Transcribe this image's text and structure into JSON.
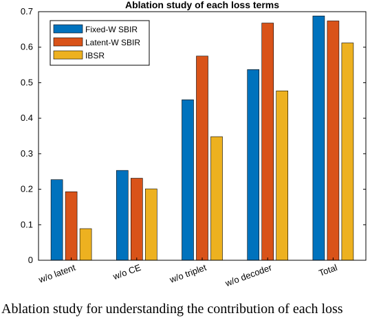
{
  "colors": {
    "fixed": "#0072BD",
    "latent": "#D95319",
    "ibsr": "#EDB120",
    "axis": "#000000"
  },
  "caption": "Ablation study for understanding the contribution of each loss",
  "chart_data": {
    "type": "bar",
    "title": "Ablation study of each loss terms",
    "xlabel": "",
    "ylabel": "",
    "categories": [
      "w/o latent",
      "w/o CE",
      "w/o triplet",
      "w/o decoder",
      "Total"
    ],
    "ylim": [
      0,
      0.7
    ],
    "yticks": [
      "0",
      "0.1",
      "0.2",
      "0.3",
      "0.4",
      "0.5",
      "0.6",
      "0.7"
    ],
    "grid": false,
    "legend_position": "top-left",
    "series": [
      {
        "name": "Fixed-W SBIR",
        "values": [
          0.227,
          0.253,
          0.452,
          0.537,
          0.688
        ]
      },
      {
        "name": "Latent-W SBIR",
        "values": [
          0.193,
          0.231,
          0.575,
          0.668,
          0.674
        ]
      },
      {
        "name": "IBSR",
        "values": [
          0.089,
          0.201,
          0.348,
          0.477,
          0.612
        ]
      }
    ]
  }
}
